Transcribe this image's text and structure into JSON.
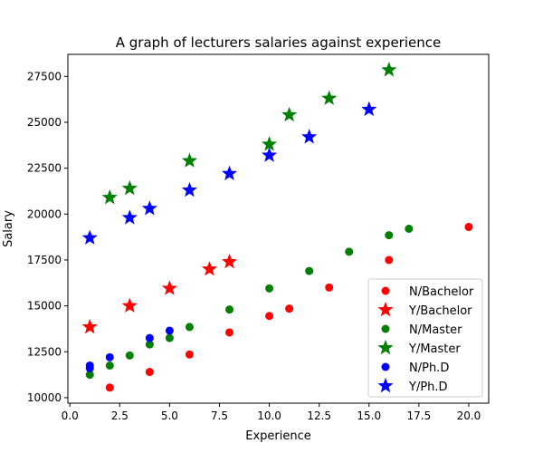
{
  "chart_data": {
    "type": "scatter",
    "title": "A graph of lecturers salaries against experience",
    "xlabel": "Experience",
    "ylabel": "Salary",
    "xlim": [
      -0.1,
      21.0
    ],
    "ylim": [
      9700,
      28700
    ],
    "xticks": [
      0.0,
      2.5,
      5.0,
      7.5,
      10.0,
      12.5,
      15.0,
      17.5,
      20.0
    ],
    "xtick_labels": [
      "0.0",
      "2.5",
      "5.0",
      "7.5",
      "10.0",
      "12.5",
      "15.0",
      "17.5",
      "20.0"
    ],
    "yticks": [
      10000,
      12500,
      15000,
      17500,
      20000,
      22500,
      25000,
      27500
    ],
    "ytick_labels": [
      "10000",
      "12500",
      "15000",
      "17500",
      "20000",
      "22500",
      "25000",
      "27500"
    ],
    "grid": false,
    "legend_position": "lower-right",
    "series": [
      {
        "name": "N/Bachelor",
        "color": "#ff0000",
        "marker": "circle",
        "points": [
          [
            2,
            10550
          ],
          [
            4,
            11400
          ],
          [
            6,
            12350
          ],
          [
            8,
            13550
          ],
          [
            10,
            14450
          ],
          [
            11,
            14850
          ],
          [
            13,
            16000
          ],
          [
            16,
            17500
          ],
          [
            20,
            19300
          ]
        ]
      },
      {
        "name": "Y/Bachelor",
        "color": "#ff0000",
        "marker": "star",
        "points": [
          [
            1,
            13850
          ],
          [
            3,
            15000
          ],
          [
            5,
            15950
          ],
          [
            7,
            17000
          ],
          [
            8,
            17400
          ]
        ]
      },
      {
        "name": "N/Master",
        "color": "#008000",
        "marker": "circle",
        "points": [
          [
            1,
            11250
          ],
          [
            2,
            11750
          ],
          [
            3,
            12300
          ],
          [
            4,
            12900
          ],
          [
            5,
            13250
          ],
          [
            6,
            13850
          ],
          [
            8,
            14800
          ],
          [
            10,
            15950
          ],
          [
            12,
            16900
          ],
          [
            14,
            17950
          ],
          [
            16,
            18850
          ],
          [
            17,
            19200
          ]
        ]
      },
      {
        "name": "Y/Master",
        "color": "#008000",
        "marker": "star",
        "points": [
          [
            2,
            20900
          ],
          [
            3,
            21400
          ],
          [
            6,
            22900
          ],
          [
            10,
            23800
          ],
          [
            11,
            25400
          ],
          [
            13,
            26300
          ],
          [
            16,
            27850
          ]
        ]
      },
      {
        "name": "N/Ph.D",
        "color": "#0000ff",
        "marker": "circle",
        "points": [
          [
            1,
            11600
          ],
          [
            1,
            11750
          ],
          [
            2,
            12200
          ],
          [
            4,
            13250
          ],
          [
            5,
            13650
          ]
        ]
      },
      {
        "name": "Y/Ph.D",
        "color": "#0000ff",
        "marker": "star",
        "points": [
          [
            1,
            18700
          ],
          [
            3,
            19800
          ],
          [
            4,
            20300
          ],
          [
            6,
            21300
          ],
          [
            8,
            22200
          ],
          [
            10,
            23200
          ],
          [
            12,
            24200
          ],
          [
            15,
            25700
          ]
        ]
      }
    ]
  }
}
